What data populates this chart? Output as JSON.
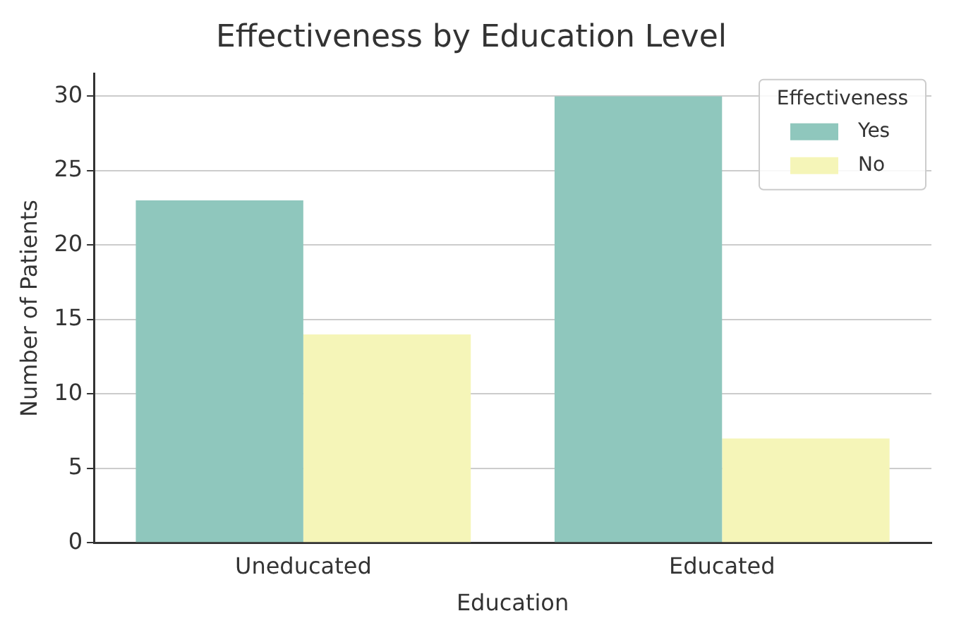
{
  "chart_data": {
    "type": "bar",
    "title": "Effectiveness by Education Level",
    "xlabel": "Education",
    "ylabel": "Number of Patients",
    "legend_title": "Effectiveness",
    "categories": [
      "Uneducated",
      "Educated"
    ],
    "series": [
      {
        "name": "Yes",
        "color": "#8fc7bd",
        "values": [
          23,
          30
        ]
      },
      {
        "name": "No",
        "color": "#f5f5b8",
        "values": [
          14,
          7
        ]
      }
    ],
    "ylim": [
      0,
      31.5
    ],
    "yticks": [
      0,
      5,
      10,
      15,
      20,
      25,
      30
    ],
    "grid": "y",
    "legend": "top right"
  }
}
